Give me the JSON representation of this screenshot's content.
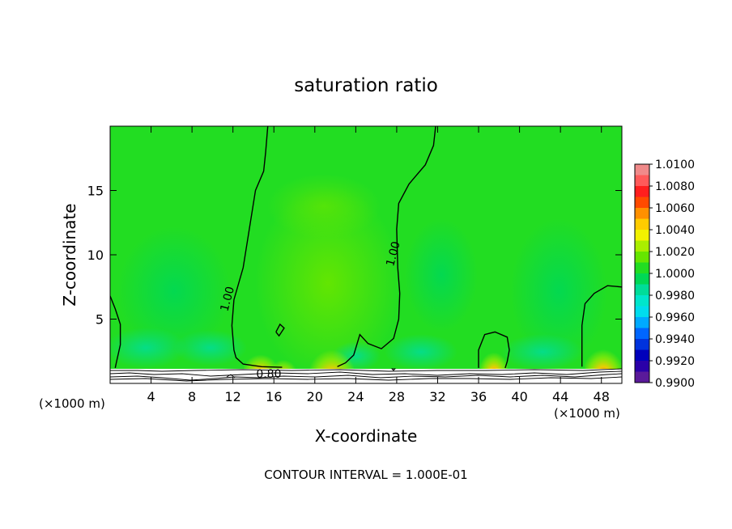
{
  "chart_data": {
    "type": "heatmap",
    "title": "saturation ratio",
    "xlabel": "X-coordinate",
    "ylabel": "Z-coordinate",
    "x_unit_left": "(×1000 m)",
    "x_unit_right": "(×1000 m)",
    "footer": "CONTOUR INTERVAL = 1.000E-01",
    "xlim": [
      0,
      50
    ],
    "ylim": [
      0,
      20
    ],
    "x_ticks": [
      4,
      8,
      12,
      16,
      20,
      24,
      28,
      32,
      36,
      40,
      44,
      48
    ],
    "y_ticks": [
      5,
      10,
      15
    ],
    "colorbar": {
      "labels": [
        "1.0100",
        "1.0080",
        "1.0060",
        "1.0040",
        "1.0020",
        "1.0000",
        "0.9980",
        "0.9960",
        "0.9940",
        "0.9920",
        "0.9900"
      ],
      "bands": [
        {
          "from": 1.009,
          "to": 1.01,
          "color": "#f08a8a"
        },
        {
          "from": 1.008,
          "to": 1.009,
          "color": "#ff5a5a"
        },
        {
          "from": 1.007,
          "to": 1.008,
          "color": "#ff1e1e"
        },
        {
          "from": 1.006,
          "to": 1.007,
          "color": "#ff4a00"
        },
        {
          "from": 1.005,
          "to": 1.006,
          "color": "#ff9000"
        },
        {
          "from": 1.004,
          "to": 1.005,
          "color": "#ffcc00"
        },
        {
          "from": 1.003,
          "to": 1.004,
          "color": "#f2f200"
        },
        {
          "from": 1.002,
          "to": 1.003,
          "color": "#aaee00"
        },
        {
          "from": 1.001,
          "to": 1.002,
          "color": "#66e600"
        },
        {
          "from": 1.0,
          "to": 1.001,
          "color": "#22dd22"
        },
        {
          "from": 0.999,
          "to": 1.0,
          "color": "#00d855"
        },
        {
          "from": 0.998,
          "to": 0.999,
          "color": "#00dd99"
        },
        {
          "from": 0.997,
          "to": 0.998,
          "color": "#00e6cc"
        },
        {
          "from": 0.996,
          "to": 0.997,
          "color": "#00ddee"
        },
        {
          "from": 0.995,
          "to": 0.996,
          "color": "#00aaff"
        },
        {
          "from": 0.994,
          "to": 0.995,
          "color": "#0066ff"
        },
        {
          "from": 0.993,
          "to": 0.994,
          "color": "#0033dd"
        },
        {
          "from": 0.992,
          "to": 0.993,
          "color": "#0000bb"
        },
        {
          "from": 0.991,
          "to": 0.992,
          "color": "#2a00a8"
        },
        {
          "from": 0.99,
          "to": 0.991,
          "color": "#5a1a9a"
        }
      ]
    },
    "contours": [
      {
        "label": "1.00",
        "label_at": [
          11.8,
          6.5
        ],
        "points": [
          [
            15.4,
            20
          ],
          [
            15.2,
            18
          ],
          [
            15.0,
            16.5
          ],
          [
            14.2,
            15
          ],
          [
            13.6,
            12
          ],
          [
            13.0,
            9
          ],
          [
            12.1,
            6.5
          ],
          [
            11.9,
            4.5
          ],
          [
            12.1,
            2.6
          ],
          [
            12.3,
            2.0
          ],
          [
            13.0,
            1.5
          ],
          [
            14.8,
            1.3
          ],
          [
            16.8,
            1.25
          ]
        ]
      },
      {
        "label": "1.00",
        "label_at": [
          28.0,
          10.0
        ],
        "points": [
          [
            31.8,
            20
          ],
          [
            31.6,
            18.5
          ],
          [
            30.8,
            17
          ],
          [
            29.2,
            15.5
          ],
          [
            28.2,
            14
          ],
          [
            28.0,
            12
          ],
          [
            28.1,
            9
          ],
          [
            28.3,
            7
          ],
          [
            28.2,
            5
          ],
          [
            27.7,
            3.5
          ],
          [
            26.5,
            2.7
          ],
          [
            25.2,
            3.1
          ],
          [
            24.4,
            3.8
          ],
          [
            23.8,
            2.2
          ],
          [
            23.0,
            1.6
          ],
          [
            22.2,
            1.3
          ]
        ]
      },
      {
        "label": "",
        "label_at": null,
        "points": [
          [
            36.0,
            1.2
          ],
          [
            36.0,
            2.6
          ],
          [
            36.6,
            3.8
          ],
          [
            37.6,
            4.0
          ],
          [
            38.8,
            3.6
          ],
          [
            39.0,
            2.6
          ],
          [
            38.8,
            1.7
          ],
          [
            38.6,
            1.2
          ]
        ]
      },
      {
        "label": "",
        "label_at": null,
        "points": [
          [
            46.1,
            1.3
          ],
          [
            46.1,
            2.5
          ],
          [
            46.1,
            4.5
          ],
          [
            46.4,
            6.2
          ],
          [
            47.3,
            7.0
          ],
          [
            48.6,
            7.6
          ],
          [
            50.0,
            7.5
          ]
        ]
      },
      {
        "label": "",
        "label_at": null,
        "points": [
          [
            0.0,
            6.8
          ],
          [
            0.5,
            5.8
          ],
          [
            1.0,
            4.6
          ],
          [
            1.0,
            3.0
          ],
          [
            0.6,
            1.6
          ],
          [
            0.5,
            1.2
          ]
        ]
      },
      {
        "label": "",
        "label_at": null,
        "points": [
          [
            16.2,
            4.0
          ],
          [
            16.6,
            4.6
          ],
          [
            17.0,
            4.3
          ],
          [
            16.5,
            3.7
          ],
          [
            16.2,
            4.0
          ]
        ]
      }
    ],
    "surface_labels": [
      {
        "text": "0.80",
        "at": [
          15.5,
          0.45
        ]
      }
    ]
  }
}
